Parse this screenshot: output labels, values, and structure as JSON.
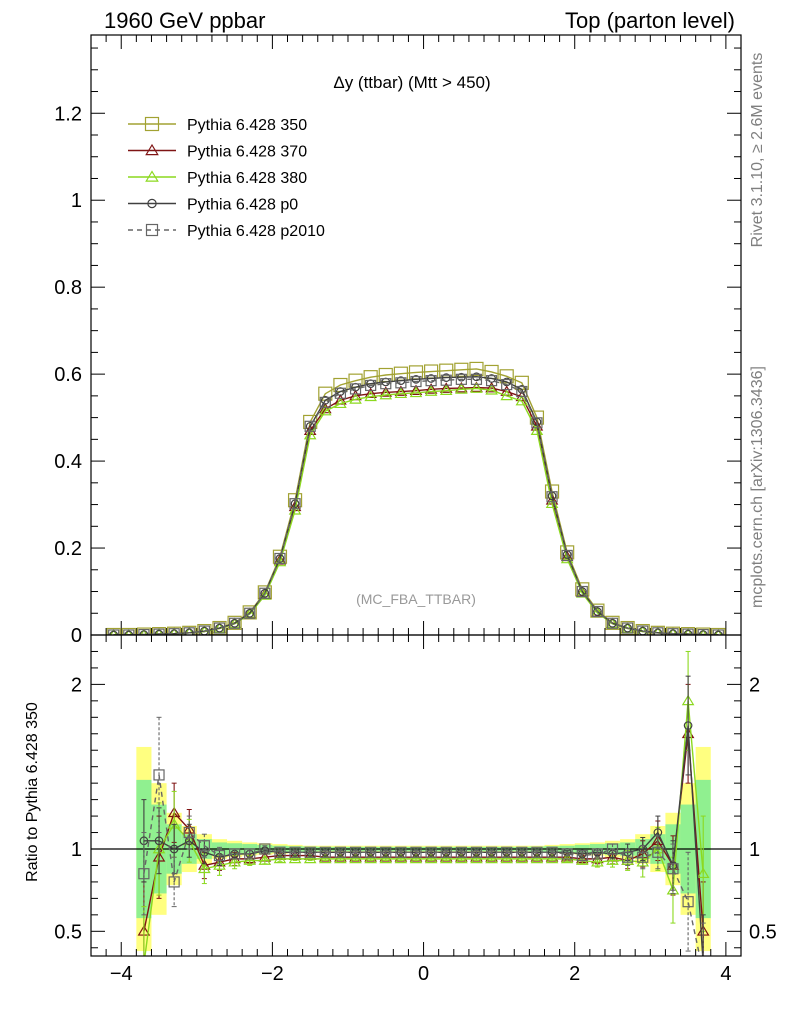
{
  "header": {
    "left": "1960 GeV ppbar",
    "right": "Top (parton level)",
    "title": "Δy (ttbar) (Mtt > 450)",
    "side_rivet": "Rivet 3.1.10, ≥ 2.6M events",
    "side_mcplots": "mcplots.cern.ch [arXiv:1306.3436]",
    "analysis_tag": "(MC_FBA_TTBAR)"
  },
  "colors": {
    "s350": "#a2a232",
    "s370": "#7f1414",
    "s380": "#8cd91f",
    "p0": "#404040",
    "p2010": "#666666",
    "band_yellow": "#ffff80",
    "band_green": "#90f090"
  },
  "chart_data": [
    {
      "type": "line",
      "panel": "main",
      "xlim": [
        -4.4,
        4.2
      ],
      "ylim": [
        0,
        1.38
      ],
      "yticks": [
        "0",
        "0.2",
        "0.4",
        "0.6",
        "0.8",
        "1",
        "1.2"
      ],
      "ytick_values": [
        0,
        0.2,
        0.4,
        0.6,
        0.8,
        1.0,
        1.2
      ],
      "xticks": [
        "−4",
        "−2",
        "0",
        "2",
        "4"
      ],
      "xtick_values": [
        -4,
        -2,
        0,
        2,
        4
      ],
      "x": [
        -4.1,
        -3.9,
        -3.7,
        -3.5,
        -3.3,
        -3.1,
        -2.9,
        -2.7,
        -2.5,
        -2.3,
        -2.1,
        -1.9,
        -1.7,
        -1.5,
        -1.3,
        -1.1,
        -0.9,
        -0.7,
        -0.5,
        -0.3,
        -0.1,
        0.1,
        0.3,
        0.5,
        0.7,
        0.9,
        1.1,
        1.3,
        1.5,
        1.7,
        1.9,
        2.1,
        2.3,
        2.5,
        2.7,
        2.9,
        3.1,
        3.3,
        3.5,
        3.7,
        3.9
      ],
      "series": [
        {
          "name": "Pythia 6.428 350",
          "key": "s350",
          "marker": "square-open",
          "dash": "solid",
          "values": [
            0.0,
            0.0,
            0.001,
            0.002,
            0.003,
            0.005,
            0.009,
            0.016,
            0.028,
            0.052,
            0.098,
            0.18,
            0.31,
            0.49,
            0.555,
            0.575,
            0.585,
            0.593,
            0.598,
            0.601,
            0.604,
            0.606,
            0.608,
            0.61,
            0.612,
            0.605,
            0.595,
            0.58,
            0.5,
            0.33,
            0.19,
            0.105,
            0.056,
            0.028,
            0.016,
            0.009,
            0.005,
            0.003,
            0.002,
            0.001,
            0.0
          ]
        },
        {
          "name": "Pythia 6.428 370",
          "key": "s370",
          "marker": "triangle-open",
          "dash": "solid",
          "values": [
            0.0,
            0.0,
            0.0,
            0.002,
            0.003,
            0.005,
            0.008,
            0.015,
            0.026,
            0.049,
            0.093,
            0.172,
            0.295,
            0.47,
            0.52,
            0.54,
            0.55,
            0.555,
            0.558,
            0.56,
            0.562,
            0.565,
            0.567,
            0.568,
            0.569,
            0.568,
            0.56,
            0.548,
            0.48,
            0.31,
            0.18,
            0.098,
            0.052,
            0.026,
            0.015,
            0.008,
            0.005,
            0.003,
            0.002,
            0.0,
            0.0
          ]
        },
        {
          "name": "Pythia 6.428 380",
          "key": "s380",
          "marker": "triangle-open",
          "dash": "solid",
          "values": [
            0.0,
            0.0,
            0.0,
            0.002,
            0.003,
            0.005,
            0.008,
            0.015,
            0.026,
            0.048,
            0.091,
            0.168,
            0.287,
            0.46,
            0.515,
            0.532,
            0.542,
            0.548,
            0.552,
            0.555,
            0.557,
            0.56,
            0.562,
            0.565,
            0.567,
            0.563,
            0.55,
            0.538,
            0.47,
            0.302,
            0.175,
            0.096,
            0.051,
            0.026,
            0.015,
            0.008,
            0.005,
            0.003,
            0.002,
            0.0,
            0.0
          ]
        },
        {
          "name": "Pythia 6.428 p0",
          "key": "p0",
          "marker": "circle-open",
          "dash": "solid",
          "values": [
            0.0,
            0.0,
            0.001,
            0.002,
            0.003,
            0.005,
            0.009,
            0.016,
            0.027,
            0.05,
            0.096,
            0.176,
            0.302,
            0.48,
            0.54,
            0.56,
            0.57,
            0.578,
            0.582,
            0.585,
            0.588,
            0.59,
            0.592,
            0.593,
            0.594,
            0.59,
            0.582,
            0.565,
            0.49,
            0.32,
            0.185,
            0.1,
            0.054,
            0.027,
            0.016,
            0.009,
            0.005,
            0.003,
            0.002,
            0.001,
            0.0
          ]
        },
        {
          "name": "Pythia 6.428 p2010",
          "key": "p2010",
          "marker": "square-open",
          "dash": "dashed",
          "values": [
            0.0,
            0.0,
            0.001,
            0.002,
            0.003,
            0.005,
            0.009,
            0.016,
            0.027,
            0.05,
            0.096,
            0.176,
            0.302,
            0.48,
            0.535,
            0.556,
            0.566,
            0.574,
            0.578,
            0.58,
            0.583,
            0.585,
            0.586,
            0.588,
            0.588,
            0.585,
            0.576,
            0.56,
            0.488,
            0.318,
            0.183,
            0.1,
            0.054,
            0.027,
            0.016,
            0.009,
            0.005,
            0.003,
            0.002,
            0.001,
            0.0
          ]
        }
      ]
    },
    {
      "type": "line",
      "panel": "ratio",
      "ylabel": "Ratio to Pythia 6.428 350",
      "xlim": [
        -4.4,
        4.2
      ],
      "ylim": [
        0.35,
        2.3
      ],
      "yticks": [
        "0.5",
        "1",
        "2"
      ],
      "ytick_values": [
        0.5,
        1,
        2
      ],
      "reference": 1,
      "x": [
        -3.7,
        -3.5,
        -3.3,
        -3.1,
        -2.9,
        -2.7,
        -2.5,
        -2.3,
        -2.1,
        -1.9,
        -1.7,
        -1.5,
        -1.3,
        -1.1,
        -0.9,
        -0.7,
        -0.5,
        -0.3,
        -0.1,
        0.1,
        0.3,
        0.5,
        0.7,
        0.9,
        1.1,
        1.3,
        1.5,
        1.7,
        1.9,
        2.1,
        2.3,
        2.5,
        2.7,
        2.9,
        3.1,
        3.3,
        3.5,
        3.7
      ],
      "band_yellow": [
        0.62,
        0.4,
        0.22,
        0.14,
        0.09,
        0.06,
        0.05,
        0.04,
        0.035,
        0.03,
        0.025,
        0.02,
        0.02,
        0.02,
        0.02,
        0.02,
        0.02,
        0.02,
        0.02,
        0.02,
        0.02,
        0.02,
        0.02,
        0.02,
        0.02,
        0.02,
        0.02,
        0.025,
        0.03,
        0.035,
        0.04,
        0.05,
        0.06,
        0.09,
        0.14,
        0.22,
        0.4,
        0.62
      ],
      "band_green": [
        0.42,
        0.27,
        0.15,
        0.09,
        0.06,
        0.04,
        0.035,
        0.03,
        0.025,
        0.02,
        0.017,
        0.015,
        0.013,
        0.013,
        0.013,
        0.013,
        0.013,
        0.013,
        0.013,
        0.013,
        0.013,
        0.013,
        0.013,
        0.013,
        0.013,
        0.013,
        0.015,
        0.017,
        0.02,
        0.025,
        0.03,
        0.035,
        0.04,
        0.06,
        0.09,
        0.15,
        0.27,
        0.42
      ],
      "series": [
        {
          "name": "Pythia 6.428 370",
          "key": "s370",
          "marker": "triangle-open",
          "dash": "solid",
          "values": [
            0.5,
            0.95,
            1.22,
            1.12,
            0.9,
            0.92,
            0.94,
            0.94,
            0.95,
            0.96,
            0.96,
            0.96,
            0.95,
            0.95,
            0.95,
            0.95,
            0.95,
            0.95,
            0.95,
            0.95,
            0.95,
            0.95,
            0.95,
            0.95,
            0.95,
            0.95,
            0.95,
            0.95,
            0.95,
            0.94,
            0.94,
            0.95,
            0.93,
            0.97,
            1.05,
            0.9,
            1.7,
            0.5
          ],
          "err": [
            0.3,
            0.25,
            0.18,
            0.12,
            0.08,
            0.05,
            0.04,
            0.03,
            0.02,
            0.015,
            0.01,
            0.01,
            0.01,
            0.01,
            0.01,
            0.01,
            0.01,
            0.01,
            0.01,
            0.01,
            0.01,
            0.01,
            0.01,
            0.01,
            0.01,
            0.01,
            0.01,
            0.01,
            0.015,
            0.02,
            0.03,
            0.04,
            0.05,
            0.08,
            0.12,
            0.18,
            0.3,
            0.3
          ]
        },
        {
          "name": "Pythia 6.428 380",
          "key": "s380",
          "marker": "triangle-open",
          "dash": "solid",
          "values": [
            0.3,
            1.0,
            1.15,
            1.05,
            0.88,
            0.9,
            0.92,
            0.93,
            0.93,
            0.94,
            0.94,
            0.94,
            0.94,
            0.94,
            0.94,
            0.94,
            0.94,
            0.94,
            0.94,
            0.94,
            0.94,
            0.94,
            0.94,
            0.94,
            0.94,
            0.94,
            0.94,
            0.94,
            0.94,
            0.93,
            0.92,
            0.93,
            0.93,
            0.92,
            1.0,
            0.75,
            1.9,
            0.85
          ],
          "err": [
            0.35,
            0.28,
            0.2,
            0.13,
            0.09,
            0.06,
            0.04,
            0.03,
            0.02,
            0.015,
            0.01,
            0.01,
            0.01,
            0.01,
            0.01,
            0.01,
            0.01,
            0.01,
            0.01,
            0.01,
            0.01,
            0.01,
            0.01,
            0.01,
            0.01,
            0.01,
            0.01,
            0.01,
            0.015,
            0.02,
            0.03,
            0.04,
            0.06,
            0.09,
            0.13,
            0.2,
            0.3,
            0.35
          ]
        },
        {
          "name": "Pythia 6.428 p0",
          "key": "p0",
          "marker": "circle-open",
          "dash": "solid",
          "values": [
            1.05,
            1.05,
            1.0,
            1.05,
            0.98,
            0.95,
            0.97,
            0.97,
            0.99,
            0.98,
            0.98,
            0.98,
            0.98,
            0.98,
            0.98,
            0.98,
            0.98,
            0.98,
            0.98,
            0.98,
            0.98,
            0.98,
            0.98,
            0.98,
            0.98,
            0.98,
            0.98,
            0.98,
            0.98,
            0.97,
            0.98,
            0.97,
            0.98,
            1.0,
            1.1,
            0.9,
            1.75,
            0.3
          ],
          "err": [
            0.25,
            0.2,
            0.15,
            0.1,
            0.07,
            0.05,
            0.03,
            0.02,
            0.02,
            0.01,
            0.01,
            0.01,
            0.01,
            0.01,
            0.01,
            0.01,
            0.01,
            0.01,
            0.01,
            0.01,
            0.01,
            0.01,
            0.01,
            0.01,
            0.01,
            0.01,
            0.01,
            0.01,
            0.01,
            0.02,
            0.02,
            0.03,
            0.05,
            0.07,
            0.1,
            0.15,
            0.3,
            0.3
          ]
        },
        {
          "name": "Pythia 6.428 p2010",
          "key": "p2010",
          "marker": "square-open",
          "dash": "dashed",
          "values": [
            0.85,
            1.45,
            0.8,
            1.1,
            1.02,
            0.96,
            0.97,
            0.97,
            1.0,
            0.98,
            0.98,
            0.98,
            0.98,
            0.98,
            0.98,
            0.98,
            0.98,
            0.98,
            0.98,
            0.98,
            0.98,
            0.98,
            0.98,
            0.98,
            0.98,
            0.98,
            0.98,
            0.98,
            0.97,
            0.96,
            0.97,
            1.0,
            0.95,
            0.95,
            0.98,
            0.88,
            0.68,
            0.25
          ],
          "err": [
            0.25,
            0.35,
            0.15,
            0.1,
            0.07,
            0.05,
            0.03,
            0.02,
            0.02,
            0.01,
            0.01,
            0.01,
            0.01,
            0.01,
            0.01,
            0.01,
            0.01,
            0.01,
            0.01,
            0.01,
            0.01,
            0.01,
            0.01,
            0.01,
            0.01,
            0.01,
            0.01,
            0.01,
            0.01,
            0.02,
            0.02,
            0.03,
            0.05,
            0.07,
            0.1,
            0.15,
            0.3,
            0.3
          ]
        }
      ]
    }
  ]
}
